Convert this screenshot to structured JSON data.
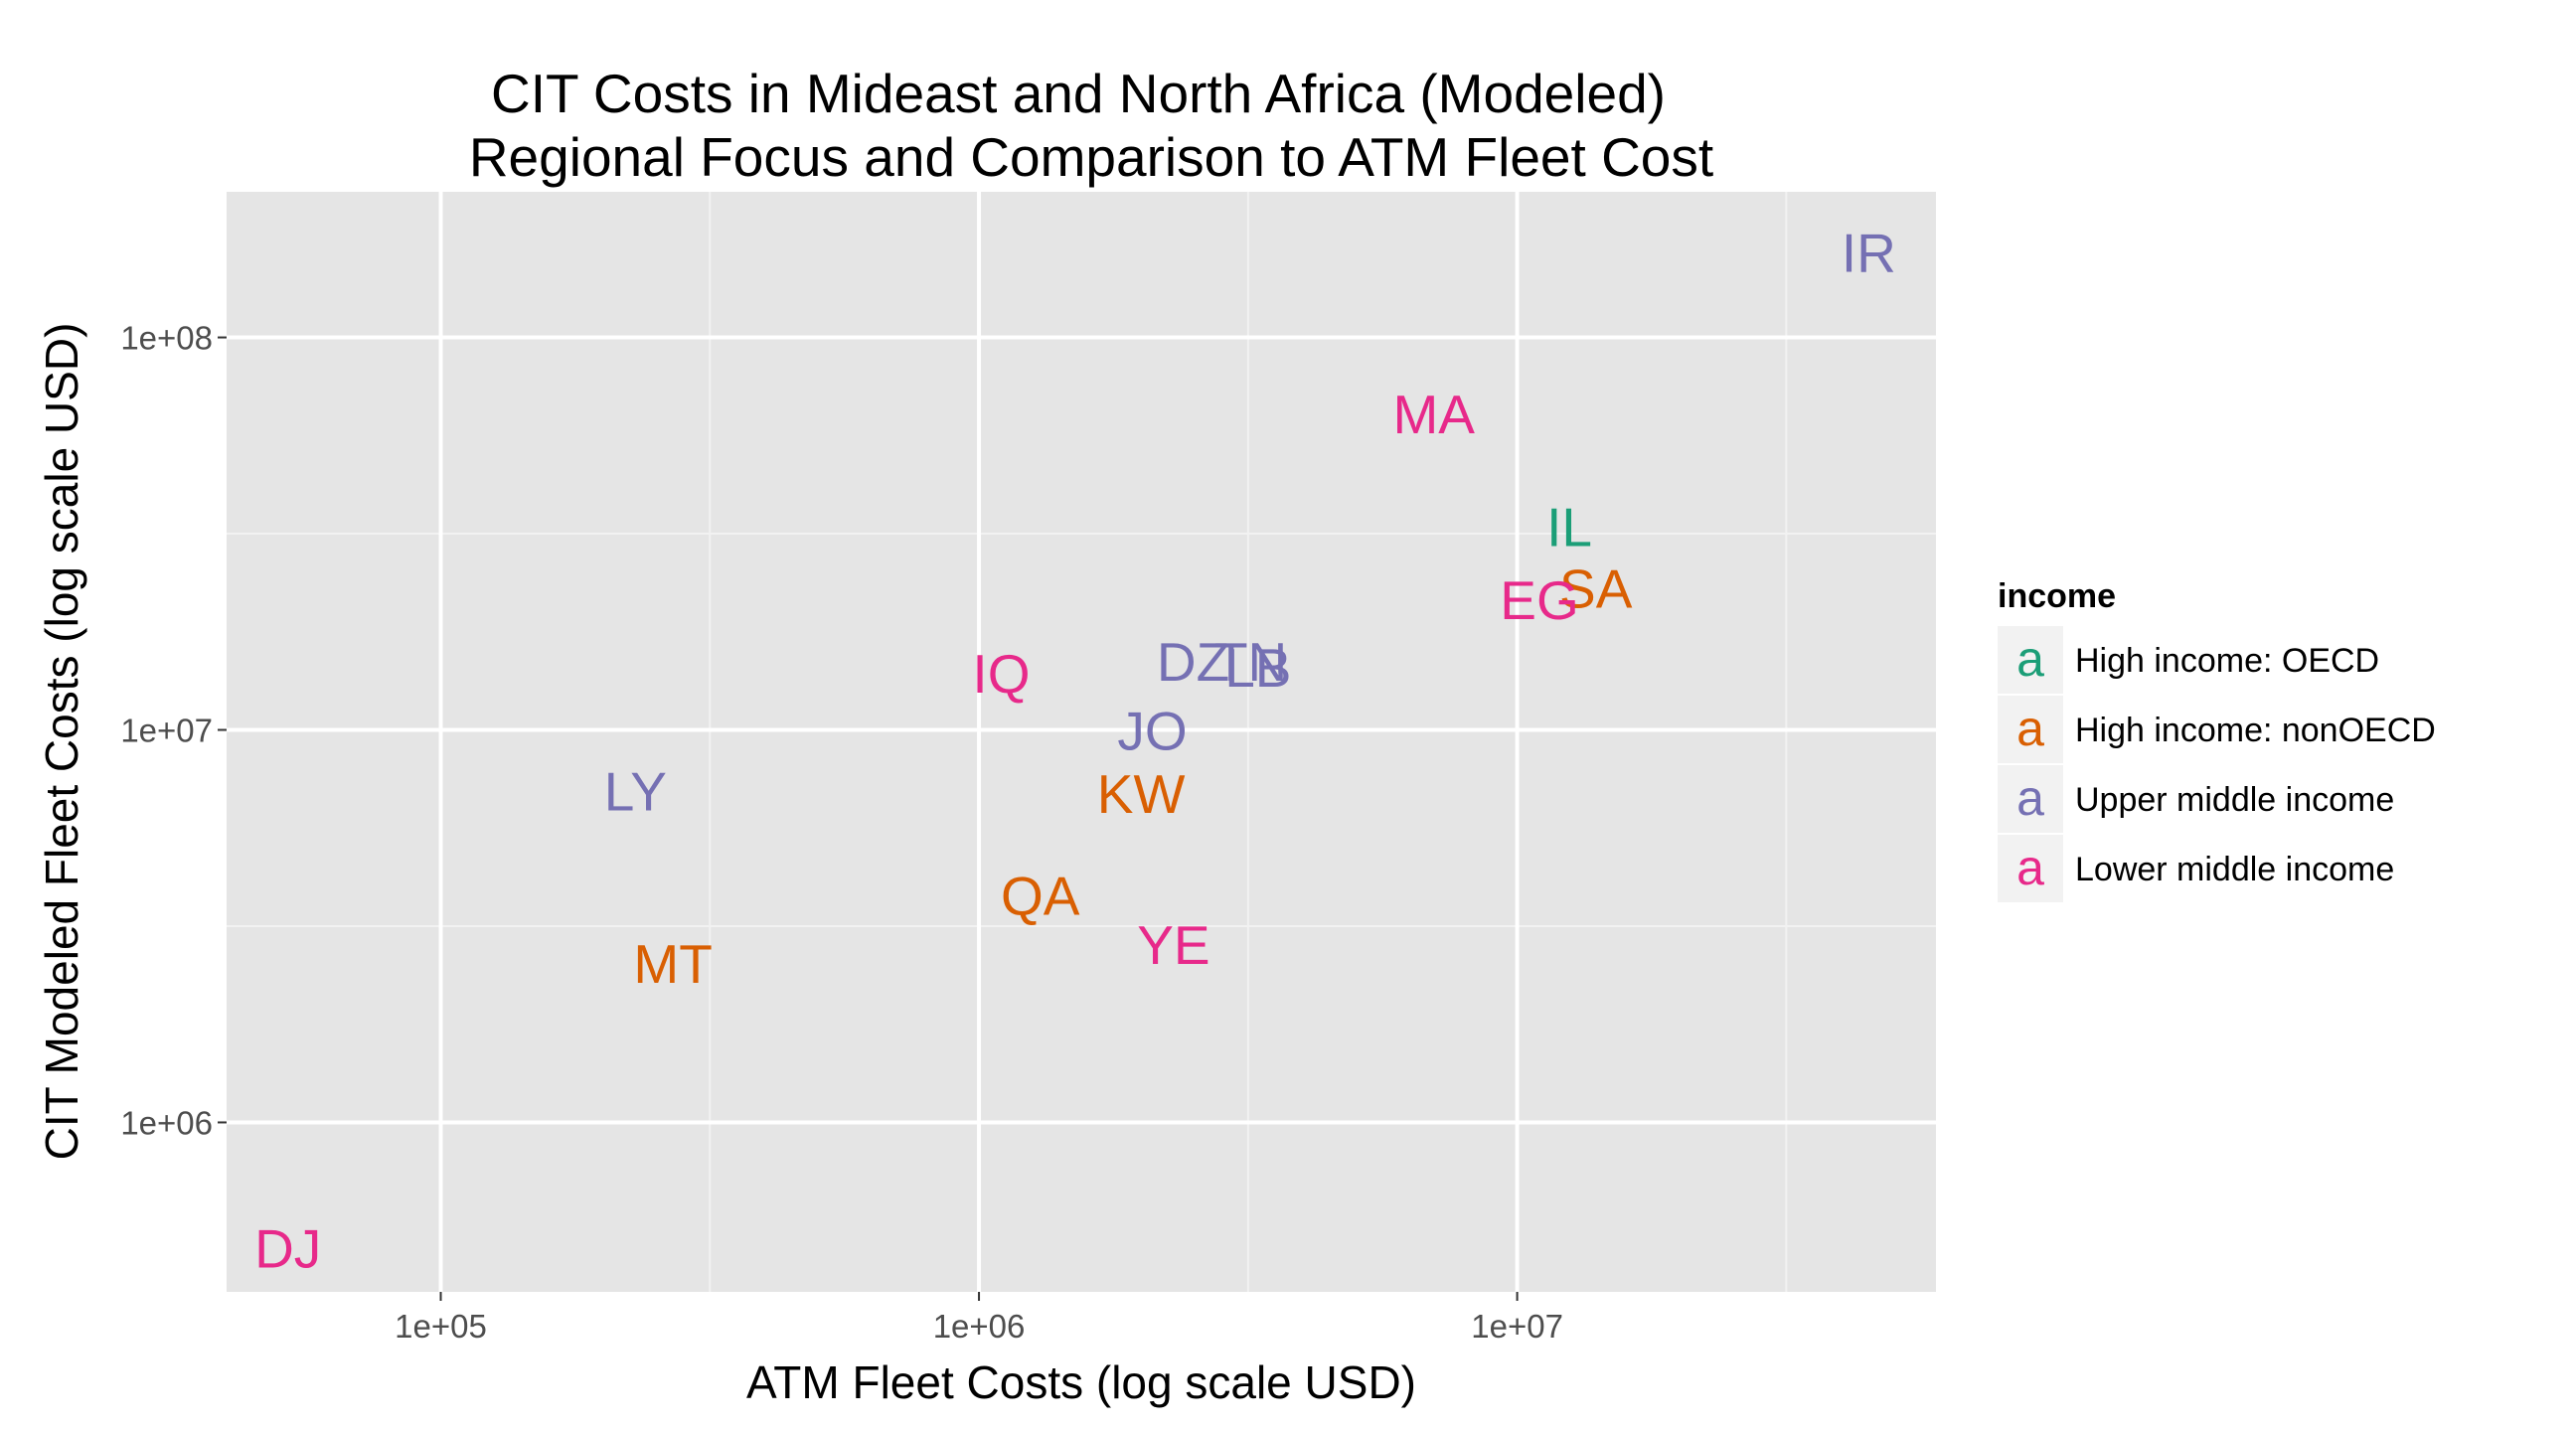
{
  "chart_data": {
    "type": "scatter",
    "title": "CIT Costs in Mideast and North Africa (Modeled)",
    "subtitle": "Regional Focus and Comparison to ATM Fleet Cost",
    "xlabel": "ATM Fleet Costs (log scale USD)",
    "ylabel": "CIT Modeled Fleet Costs (log scale USD)",
    "x_scale": "log10",
    "y_scale": "log10",
    "xlim": [
      40000,
      60000000
    ],
    "ylim": [
      370000,
      235000000
    ],
    "x_ticks": [
      {
        "value": 100000,
        "label": "1e+05"
      },
      {
        "value": 1000000,
        "label": "1e+06"
      },
      {
        "value": 10000000,
        "label": "1e+07"
      }
    ],
    "y_ticks": [
      {
        "value": 1000000,
        "label": "1e+06"
      },
      {
        "value": 10000000,
        "label": "1e+07"
      },
      {
        "value": 100000000,
        "label": "1e+08"
      }
    ],
    "grid": true,
    "legend": {
      "title": "income",
      "placement": "right",
      "key_glyph": "a",
      "entries": [
        {
          "name": "High income: OECD",
          "color": "#1b9e77"
        },
        {
          "name": "High income: nonOECD",
          "color": "#d95f02"
        },
        {
          "name": "Upper middle income",
          "color": "#7570b3"
        },
        {
          "name": "Lower middle income",
          "color": "#e7298a"
        }
      ]
    },
    "points": [
      {
        "label": "IR",
        "x": 45000000,
        "y": 165000000,
        "group": "Upper middle income"
      },
      {
        "label": "MA",
        "x": 7000000,
        "y": 64000000,
        "group": "Lower middle income"
      },
      {
        "label": "IL",
        "x": 12500000,
        "y": 33000000,
        "group": "High income: OECD"
      },
      {
        "label": "SA",
        "x": 14000000,
        "y": 23000000,
        "group": "High income: nonOECD"
      },
      {
        "label": "EG",
        "x": 11000000,
        "y": 21500000,
        "group": "Lower middle income"
      },
      {
        "label": "IQ",
        "x": 1100000,
        "y": 14000000,
        "group": "Lower middle income"
      },
      {
        "label": "DZ",
        "x": 2500000,
        "y": 15000000,
        "group": "Upper middle income"
      },
      {
        "label": "TN",
        "x": 3200000,
        "y": 15000000,
        "group": "Upper middle income"
      },
      {
        "label": "LB",
        "x": 3300000,
        "y": 14500000,
        "group": "Upper middle income"
      },
      {
        "label": "JO",
        "x": 2100000,
        "y": 10000000,
        "group": "Upper middle income"
      },
      {
        "label": "KW",
        "x": 2000000,
        "y": 6900000,
        "group": "High income: nonOECD"
      },
      {
        "label": "LY",
        "x": 230000,
        "y": 7000000,
        "group": "Upper middle income"
      },
      {
        "label": "QA",
        "x": 1300000,
        "y": 3800000,
        "group": "High income: nonOECD"
      },
      {
        "label": "YE",
        "x": 2300000,
        "y": 2850000,
        "group": "Lower middle income"
      },
      {
        "label": "MT",
        "x": 270000,
        "y": 2550000,
        "group": "High income: nonOECD"
      },
      {
        "label": "DJ",
        "x": 52000,
        "y": 480000,
        "group": "Lower middle income"
      }
    ]
  }
}
